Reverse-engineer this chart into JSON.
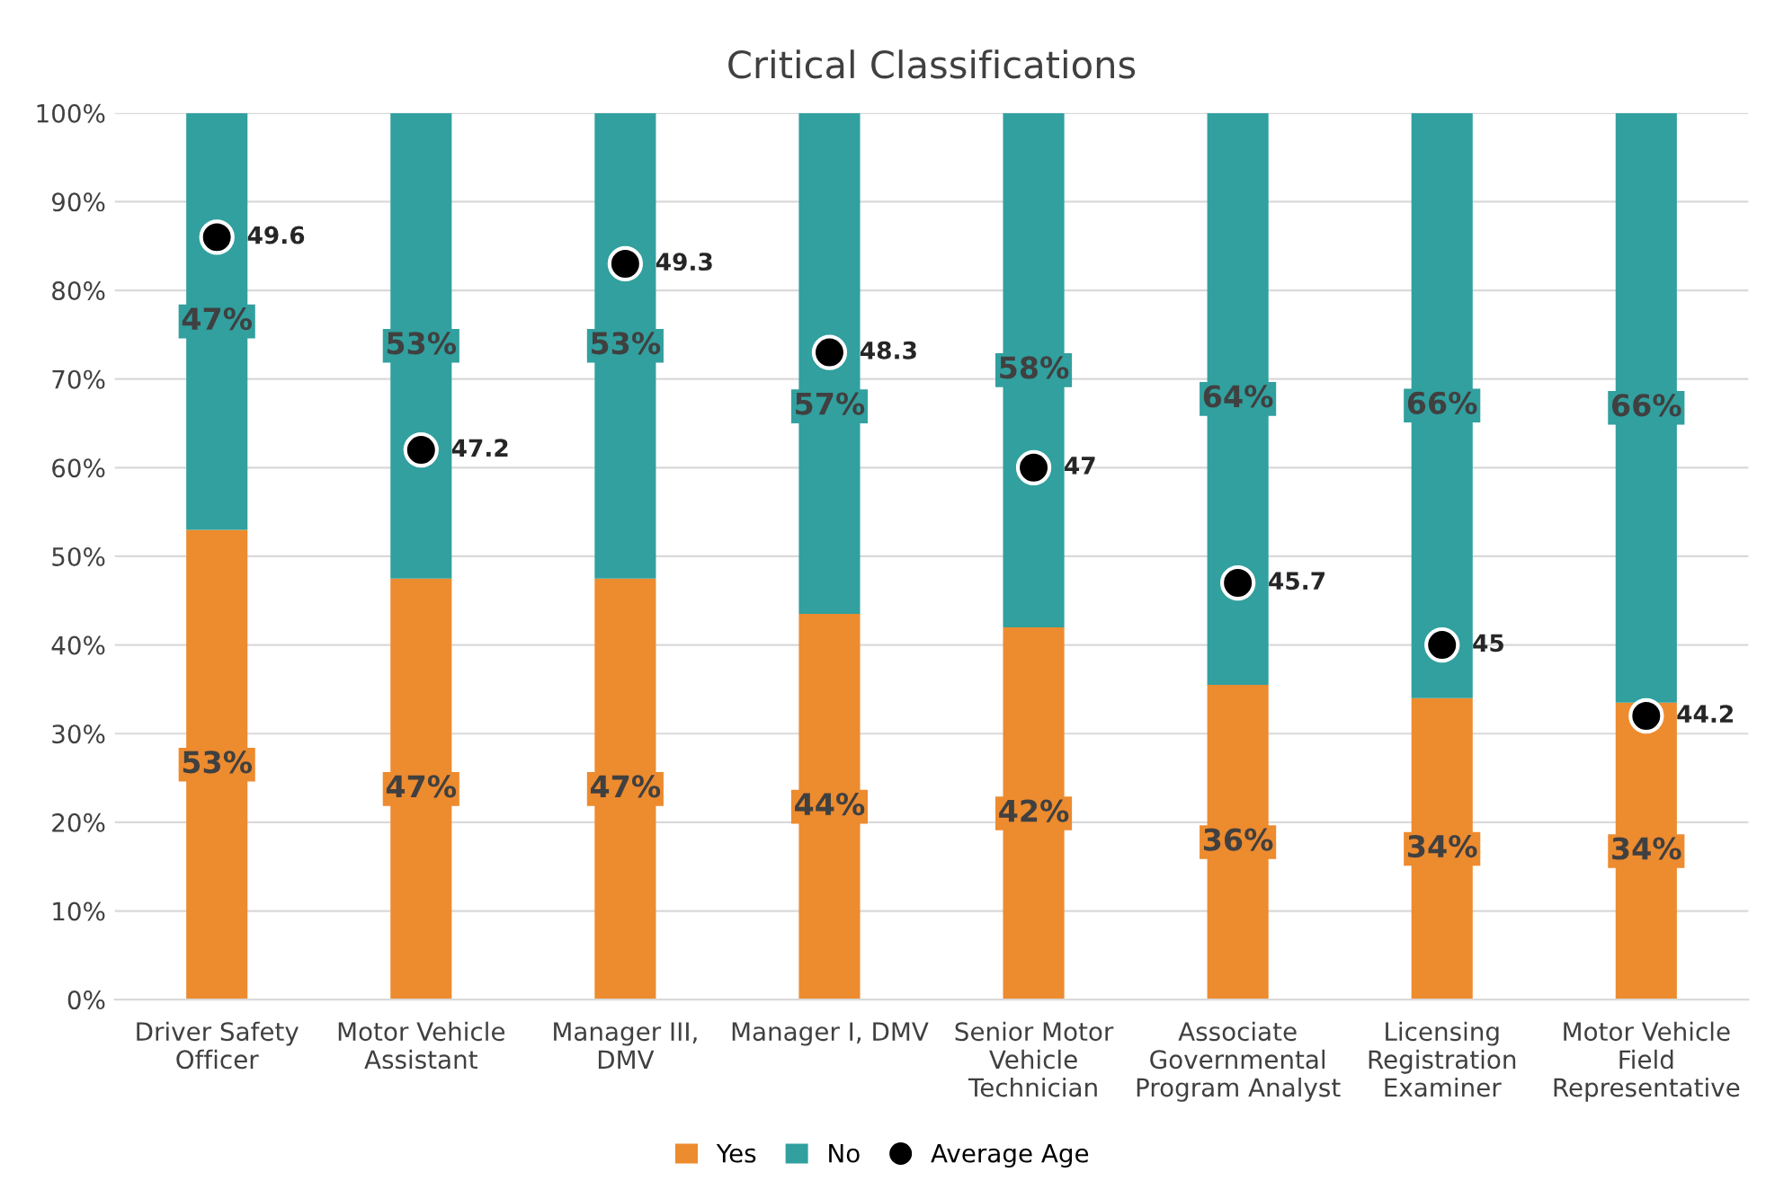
{
  "chart_data": {
    "type": "bar",
    "title": "Critical Classifications",
    "stacked": true,
    "categories": [
      "Driver Safety\nOfficer",
      "Motor Vehicle\nAssistant",
      "Manager III,\nDMV",
      "Manager I, DMV",
      "Senior Motor\nVehicle\nTechnician",
      "Associate\nGovernmental\nProgram Analyst",
      "Licensing\nRegistration\nExaminer",
      "Motor Vehicle\nField\nRepresentative"
    ],
    "series": [
      {
        "name": "Yes",
        "color": "#ed8b2f",
        "values": [
          53,
          47.5,
          47.5,
          43.5,
          42,
          35.5,
          34,
          33.5
        ],
        "value_labels": [
          "53%",
          "47%",
          "47%",
          "44%",
          "42%",
          "36%",
          "34%",
          "34%"
        ]
      },
      {
        "name": "No",
        "color": "#31a09f",
        "values": [
          47,
          52.5,
          52.5,
          56.5,
          58,
          64.5,
          66,
          66.5
        ],
        "value_labels": [
          "47%",
          "53%",
          "53%",
          "57%",
          "58%",
          "64%",
          "66%",
          "66%"
        ]
      },
      {
        "name": "Average Age",
        "type": "scatter",
        "axis": "y2",
        "color": "#000000",
        "marker": "circle",
        "values": [
          49.6,
          47.2,
          49.3,
          48.3,
          47,
          45.7,
          45,
          44.2
        ],
        "value_labels": [
          "49.6",
          "47.2",
          "49.3",
          "48.3",
          "47",
          "45.7",
          "45",
          "44.2"
        ]
      }
    ],
    "ylim": [
      0,
      100
    ],
    "yticks": [
      {
        "value": 0,
        "label": "0%"
      },
      {
        "value": 10,
        "label": "10%"
      },
      {
        "value": 20,
        "label": "20%"
      },
      {
        "value": 30,
        "label": "30%"
      },
      {
        "value": 40,
        "label": "40%"
      },
      {
        "value": 50,
        "label": "50%"
      },
      {
        "value": 60,
        "label": "60%"
      },
      {
        "value": 70,
        "label": "70%"
      },
      {
        "value": 80,
        "label": "80%"
      },
      {
        "value": 90,
        "label": "90%"
      },
      {
        "value": 100,
        "label": "100%"
      }
    ],
    "y2lim": [
      41,
      51
    ],
    "tick_labels": "xy",
    "grid": "y",
    "legend": "bottom"
  }
}
